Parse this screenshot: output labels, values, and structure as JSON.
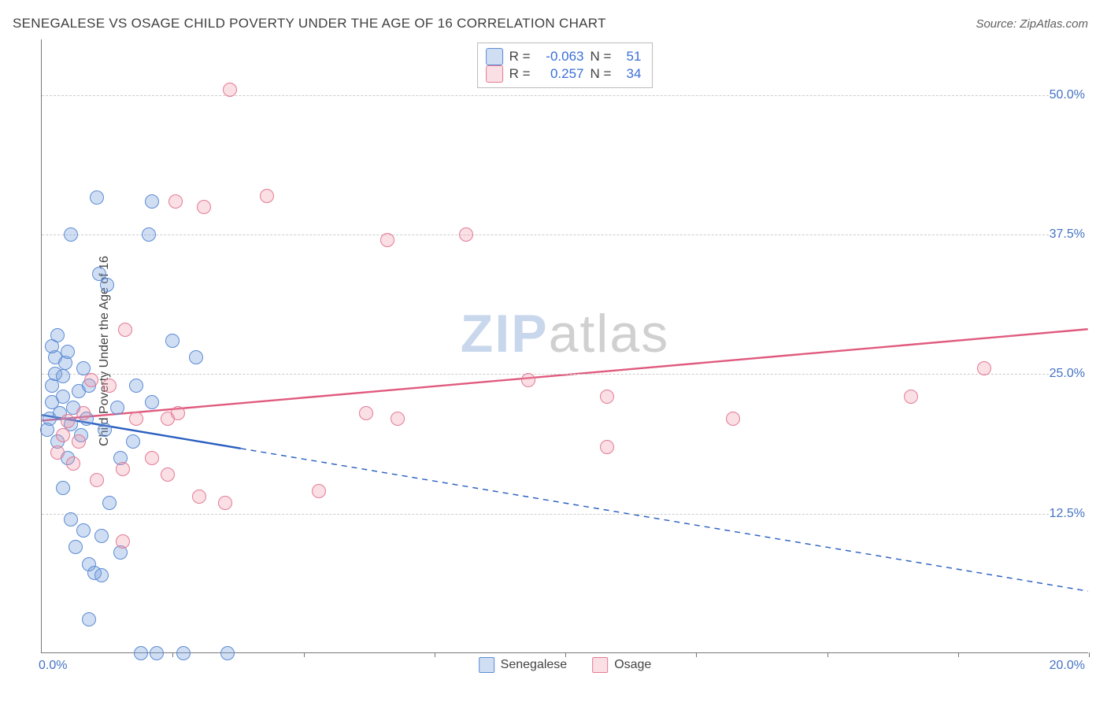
{
  "title": "SENEGALESE VS OSAGE CHILD POVERTY UNDER THE AGE OF 16 CORRELATION CHART",
  "source_label": "Source: ZipAtlas.com",
  "yaxis_title": "Child Poverty Under the Age of 16",
  "watermark": {
    "part1": "ZIP",
    "part2": "atlas"
  },
  "chart": {
    "type": "scatter",
    "xlim": [
      0,
      20
    ],
    "ylim": [
      0,
      55
    ],
    "ytick_values": [
      12.5,
      25.0,
      37.5,
      50.0
    ],
    "ytick_labels": [
      "12.5%",
      "25.0%",
      "37.5%",
      "50.0%"
    ],
    "xtick_values": [
      0,
      2.5,
      5.0,
      7.5,
      10.0,
      12.5,
      15.0,
      17.5,
      20.0
    ],
    "x_axis_label_left": "0.0%",
    "x_axis_label_right": "20.0%",
    "background_color": "#ffffff",
    "grid_color": "#cccccc",
    "marker_radius": 9,
    "marker_stroke_width": 1.4,
    "series": [
      {
        "key": "senegalese",
        "label": "Senegalese",
        "fill": "rgba(120,160,220,0.35)",
        "stroke": "#5b8bd4",
        "line_color": "#2b5fc0",
        "line_width": 2.4,
        "R": "-0.063",
        "N": "51",
        "trend": {
          "x1": 0,
          "y1": 21.3,
          "x2": 20,
          "y2": 5.5,
          "solid_until_x": 3.8
        },
        "points": [
          [
            0.1,
            20.0
          ],
          [
            0.15,
            21.0
          ],
          [
            0.2,
            22.5
          ],
          [
            0.2,
            24.0
          ],
          [
            0.25,
            25.0
          ],
          [
            0.25,
            26.5
          ],
          [
            0.2,
            27.5
          ],
          [
            0.3,
            28.5
          ],
          [
            0.55,
            37.5
          ],
          [
            0.3,
            19.0
          ],
          [
            0.35,
            21.5
          ],
          [
            0.4,
            23.0
          ],
          [
            0.4,
            24.8
          ],
          [
            0.45,
            26.0
          ],
          [
            0.5,
            27.0
          ],
          [
            0.5,
            17.5
          ],
          [
            0.55,
            20.5
          ],
          [
            0.6,
            22.0
          ],
          [
            0.7,
            23.5
          ],
          [
            0.8,
            25.5
          ],
          [
            0.75,
            19.5
          ],
          [
            0.85,
            21.0
          ],
          [
            0.9,
            24.0
          ],
          [
            0.4,
            14.8
          ],
          [
            0.55,
            12.0
          ],
          [
            0.8,
            11.0
          ],
          [
            0.65,
            9.5
          ],
          [
            0.9,
            8.0
          ],
          [
            1.0,
            7.2
          ],
          [
            1.15,
            7.0
          ],
          [
            0.9,
            3.0
          ],
          [
            1.05,
            40.8
          ],
          [
            1.1,
            34.0
          ],
          [
            1.25,
            33.0
          ],
          [
            2.1,
            40.5
          ],
          [
            1.45,
            22.0
          ],
          [
            2.5,
            28.0
          ],
          [
            2.05,
            37.5
          ],
          [
            2.1,
            22.5
          ],
          [
            2.95,
            26.5
          ],
          [
            1.3,
            13.5
          ],
          [
            1.15,
            10.5
          ],
          [
            1.9,
            0.0
          ],
          [
            1.5,
            17.5
          ],
          [
            1.75,
            19.0
          ],
          [
            1.5,
            9.0
          ],
          [
            2.2,
            0.0
          ],
          [
            2.7,
            0.0
          ],
          [
            3.55,
            0.0
          ],
          [
            1.8,
            24.0
          ],
          [
            1.2,
            20.0
          ]
        ]
      },
      {
        "key": "osage",
        "label": "Osage",
        "fill": "rgba(240,150,170,0.30)",
        "stroke": "#e37a94",
        "line_color": "#e05a7e",
        "line_width": 2.4,
        "R": "0.257",
        "N": "34",
        "trend": {
          "x1": 0,
          "y1": 20.8,
          "x2": 20,
          "y2": 29.0,
          "solid_until_x": 20
        },
        "points": [
          [
            0.3,
            18.0
          ],
          [
            0.4,
            19.5
          ],
          [
            0.5,
            20.8
          ],
          [
            0.6,
            17.0
          ],
          [
            0.7,
            19.0
          ],
          [
            0.8,
            21.5
          ],
          [
            0.95,
            24.5
          ],
          [
            1.3,
            24.0
          ],
          [
            1.55,
            16.5
          ],
          [
            1.6,
            29.0
          ],
          [
            1.8,
            21.0
          ],
          [
            2.1,
            17.5
          ],
          [
            2.4,
            16.0
          ],
          [
            2.4,
            21.0
          ],
          [
            2.6,
            21.5
          ],
          [
            3.1,
            40.0
          ],
          [
            2.55,
            40.5
          ],
          [
            3.0,
            14.0
          ],
          [
            3.5,
            13.5
          ],
          [
            3.6,
            50.5
          ],
          [
            4.3,
            41.0
          ],
          [
            5.3,
            14.5
          ],
          [
            6.6,
            37.0
          ],
          [
            6.8,
            21.0
          ],
          [
            6.2,
            21.5
          ],
          [
            8.1,
            37.5
          ],
          [
            9.3,
            24.5
          ],
          [
            10.8,
            23.0
          ],
          [
            10.8,
            18.5
          ],
          [
            13.2,
            21.0
          ],
          [
            16.6,
            23.0
          ],
          [
            18.0,
            25.5
          ],
          [
            1.55,
            10.0
          ],
          [
            1.05,
            15.5
          ]
        ]
      }
    ]
  },
  "legend_labels": {
    "R_prefix": "R =",
    "N_prefix": "N ="
  }
}
